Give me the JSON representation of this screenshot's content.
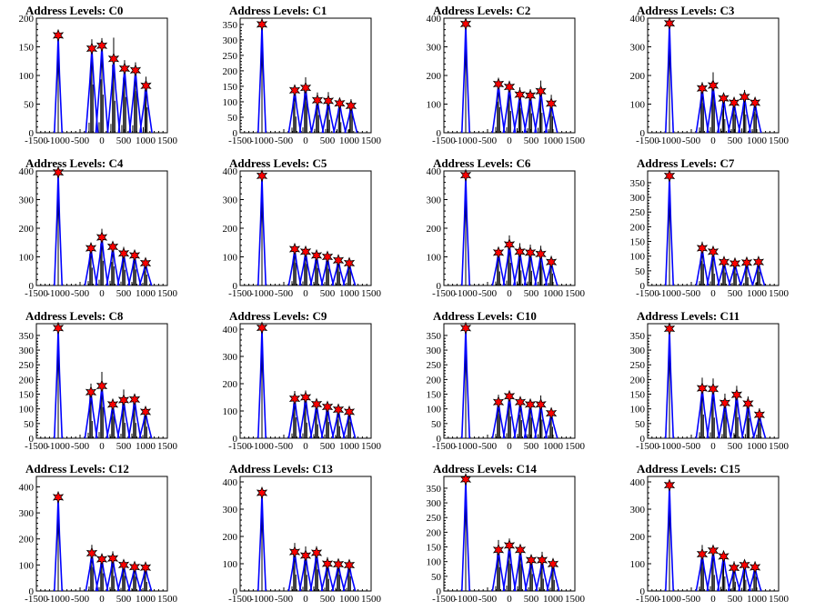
{
  "page": {
    "background": "#ffffff"
  },
  "style": {
    "frame_color": "#000000",
    "hist_color": "#000000",
    "fit_color": "#0000ff",
    "marker_color": "#ff0000"
  },
  "chart_data": [
    {
      "type": "bar",
      "title": "Address Levels: C0",
      "xlim": [
        -1500,
        1500
      ],
      "ylim": [
        0,
        200
      ],
      "yticks": [
        0,
        50,
        100,
        150,
        200
      ],
      "xticks": [
        -1500,
        -1000,
        -500,
        0,
        500,
        1000,
        1500
      ],
      "xtick_labels": [
        "-1500",
        "-1000",
        "-500",
        "0",
        "500",
        "1000",
        "1500"
      ],
      "peaks": [
        {
          "x": -1000,
          "y": 170
        },
        {
          "x": -230,
          "y": 147
        },
        {
          "x": 0,
          "y": 152
        },
        {
          "x": 270,
          "y": 129
        },
        {
          "x": 520,
          "y": 112
        },
        {
          "x": 770,
          "y": 109
        },
        {
          "x": 1010,
          "y": 82
        }
      ]
    },
    {
      "type": "bar",
      "title": "Address Levels: C1",
      "xlim": [
        -1500,
        1500
      ],
      "ylim": [
        0,
        370
      ],
      "yticks": [
        0,
        50,
        100,
        150,
        200,
        250,
        300,
        350
      ],
      "xticks": [
        -1500,
        -1000,
        -500,
        0,
        500,
        1000,
        1500
      ],
      "xtick_labels": [
        "-1500",
        "-1000",
        "-500",
        "0",
        "500",
        "1000",
        "1500"
      ],
      "peaks": [
        {
          "x": -1000,
          "y": 350
        },
        {
          "x": -250,
          "y": 137
        },
        {
          "x": 0,
          "y": 145
        },
        {
          "x": 270,
          "y": 105
        },
        {
          "x": 520,
          "y": 103
        },
        {
          "x": 780,
          "y": 95
        },
        {
          "x": 1040,
          "y": 87
        }
      ]
    },
    {
      "type": "bar",
      "title": "Address Levels: C2",
      "xlim": [
        -1500,
        1500
      ],
      "ylim": [
        0,
        400
      ],
      "yticks": [
        0,
        100,
        200,
        300,
        400
      ],
      "xticks": [
        -1500,
        -1000,
        -500,
        0,
        500,
        1000,
        1500
      ],
      "xtick_labels": [
        "-1500",
        "-1000",
        "-500",
        "0",
        "500",
        "1000",
        "1500"
      ],
      "peaks": [
        {
          "x": -1000,
          "y": 380
        },
        {
          "x": -250,
          "y": 170
        },
        {
          "x": 0,
          "y": 160
        },
        {
          "x": 240,
          "y": 133
        },
        {
          "x": 480,
          "y": 130
        },
        {
          "x": 720,
          "y": 145
        },
        {
          "x": 960,
          "y": 102
        }
      ]
    },
    {
      "type": "bar",
      "title": "Address Levels: C3",
      "xlim": [
        -1500,
        1500
      ],
      "ylim": [
        0,
        400
      ],
      "yticks": [
        0,
        100,
        200,
        300,
        400
      ],
      "xticks": [
        -1500,
        -1000,
        -500,
        0,
        500,
        1000,
        1500
      ],
      "xtick_labels": [
        "-1500",
        "-1000",
        "-500",
        "0",
        "500",
        "1000",
        "1500"
      ],
      "peaks": [
        {
          "x": -1000,
          "y": 382
        },
        {
          "x": -250,
          "y": 155
        },
        {
          "x": 0,
          "y": 165
        },
        {
          "x": 240,
          "y": 120
        },
        {
          "x": 480,
          "y": 105
        },
        {
          "x": 720,
          "y": 125
        },
        {
          "x": 960,
          "y": 105
        }
      ]
    },
    {
      "type": "bar",
      "title": "Address Levels: C4",
      "xlim": [
        -1500,
        1500
      ],
      "ylim": [
        0,
        400
      ],
      "yticks": [
        0,
        100,
        200,
        300,
        400
      ],
      "xticks": [
        -1500,
        -1000,
        -500,
        0,
        500,
        1000,
        1500
      ],
      "xtick_labels": [
        "-1500",
        "-1000",
        "-500",
        "0",
        "500",
        "1000",
        "1500"
      ],
      "peaks": [
        {
          "x": -1000,
          "y": 395
        },
        {
          "x": -250,
          "y": 130
        },
        {
          "x": 0,
          "y": 168
        },
        {
          "x": 250,
          "y": 135
        },
        {
          "x": 500,
          "y": 112
        },
        {
          "x": 750,
          "y": 105
        },
        {
          "x": 1000,
          "y": 78
        }
      ]
    },
    {
      "type": "bar",
      "title": "Address Levels: C5",
      "xlim": [
        -1500,
        1500
      ],
      "ylim": [
        0,
        400
      ],
      "yticks": [
        0,
        100,
        200,
        300,
        400
      ],
      "xticks": [
        -1500,
        -1000,
        -500,
        0,
        500,
        1000,
        1500
      ],
      "xtick_labels": [
        "-1500",
        "-1000",
        "-500",
        "0",
        "500",
        "1000",
        "1500"
      ],
      "peaks": [
        {
          "x": -1000,
          "y": 383
        },
        {
          "x": -250,
          "y": 127
        },
        {
          "x": 0,
          "y": 118
        },
        {
          "x": 250,
          "y": 105
        },
        {
          "x": 500,
          "y": 100
        },
        {
          "x": 750,
          "y": 88
        },
        {
          "x": 1000,
          "y": 78
        }
      ]
    },
    {
      "type": "bar",
      "title": "Address Levels: C6",
      "xlim": [
        -1500,
        1500
      ],
      "ylim": [
        0,
        400
      ],
      "yticks": [
        0,
        100,
        200,
        300,
        400
      ],
      "xticks": [
        -1500,
        -1000,
        -500,
        0,
        500,
        1000,
        1500
      ],
      "xtick_labels": [
        "-1500",
        "-1000",
        "-500",
        "0",
        "500",
        "1000",
        "1500"
      ],
      "peaks": [
        {
          "x": -1000,
          "y": 385
        },
        {
          "x": -250,
          "y": 115
        },
        {
          "x": 0,
          "y": 143
        },
        {
          "x": 240,
          "y": 118
        },
        {
          "x": 480,
          "y": 115
        },
        {
          "x": 720,
          "y": 110
        },
        {
          "x": 960,
          "y": 82
        }
      ]
    },
    {
      "type": "bar",
      "title": "Address Levels: C7",
      "xlim": [
        -1500,
        1500
      ],
      "ylim": [
        0,
        390
      ],
      "yticks": [
        0,
        50,
        100,
        150,
        200,
        250,
        300,
        350
      ],
      "xticks": [
        -1500,
        -1000,
        -500,
        0,
        500,
        1000,
        1500
      ],
      "xtick_labels": [
        "-1500",
        "-1000",
        "-500",
        "0",
        "500",
        "1000",
        "1500"
      ],
      "peaks": [
        {
          "x": -1000,
          "y": 373
        },
        {
          "x": -250,
          "y": 127
        },
        {
          "x": 0,
          "y": 115
        },
        {
          "x": 250,
          "y": 80
        },
        {
          "x": 500,
          "y": 75
        },
        {
          "x": 770,
          "y": 78
        },
        {
          "x": 1040,
          "y": 80
        }
      ]
    },
    {
      "type": "bar",
      "title": "Address Levels: C8",
      "xlim": [
        -1500,
        1500
      ],
      "ylim": [
        0,
        390
      ],
      "yticks": [
        0,
        50,
        100,
        150,
        200,
        250,
        300,
        350
      ],
      "xticks": [
        -1500,
        -1000,
        -500,
        0,
        500,
        1000,
        1500
      ],
      "xtick_labels": [
        "-1500",
        "-1000",
        "-500",
        "0",
        "500",
        "1000",
        "1500"
      ],
      "peaks": [
        {
          "x": -1000,
          "y": 375
        },
        {
          "x": -250,
          "y": 157
        },
        {
          "x": 0,
          "y": 178
        },
        {
          "x": 250,
          "y": 115
        },
        {
          "x": 500,
          "y": 130
        },
        {
          "x": 750,
          "y": 132
        },
        {
          "x": 1000,
          "y": 90
        }
      ]
    },
    {
      "type": "bar",
      "title": "Address Levels: C9",
      "xlim": [
        -1500,
        1500
      ],
      "ylim": [
        0,
        420
      ],
      "yticks": [
        0,
        100,
        200,
        300,
        400
      ],
      "xticks": [
        -1500,
        -1000,
        -500,
        0,
        500,
        1000,
        1500
      ],
      "xtick_labels": [
        "-1500",
        "-1000",
        "-500",
        "0",
        "500",
        "1000",
        "1500"
      ],
      "peaks": [
        {
          "x": -1000,
          "y": 405
        },
        {
          "x": -250,
          "y": 145
        },
        {
          "x": 0,
          "y": 150
        },
        {
          "x": 250,
          "y": 125
        },
        {
          "x": 500,
          "y": 115
        },
        {
          "x": 750,
          "y": 105
        },
        {
          "x": 1000,
          "y": 97
        }
      ]
    },
    {
      "type": "bar",
      "title": "Address Levels: C10",
      "xlim": [
        -1500,
        1500
      ],
      "ylim": [
        0,
        390
      ],
      "yticks": [
        0,
        50,
        100,
        150,
        200,
        250,
        300,
        350
      ],
      "xticks": [
        -1500,
        -1000,
        -500,
        0,
        500,
        1000,
        1500
      ],
      "xtick_labels": [
        "-1500",
        "-1000",
        "-500",
        "0",
        "500",
        "1000",
        "1500"
      ],
      "peaks": [
        {
          "x": -1000,
          "y": 375
        },
        {
          "x": -250,
          "y": 123
        },
        {
          "x": 0,
          "y": 143
        },
        {
          "x": 250,
          "y": 123
        },
        {
          "x": 480,
          "y": 115
        },
        {
          "x": 720,
          "y": 115
        },
        {
          "x": 960,
          "y": 85
        }
      ]
    },
    {
      "type": "bar",
      "title": "Address Levels: C11",
      "xlim": [
        -1500,
        1500
      ],
      "ylim": [
        0,
        390
      ],
      "yticks": [
        0,
        50,
        100,
        150,
        200,
        250,
        300,
        350
      ],
      "xticks": [
        -1500,
        -1000,
        -500,
        0,
        500,
        1000,
        1500
      ],
      "xtick_labels": [
        "-1500",
        "-1000",
        "-500",
        "0",
        "500",
        "1000",
        "1500"
      ],
      "peaks": [
        {
          "x": -1000,
          "y": 373
        },
        {
          "x": -250,
          "y": 170
        },
        {
          "x": 0,
          "y": 168
        },
        {
          "x": 270,
          "y": 120
        },
        {
          "x": 540,
          "y": 148
        },
        {
          "x": 800,
          "y": 118
        },
        {
          "x": 1060,
          "y": 80
        }
      ]
    },
    {
      "type": "bar",
      "title": "Address Levels: C12",
      "xlim": [
        -1500,
        1500
      ],
      "ylim": [
        0,
        440
      ],
      "yticks": [
        0,
        100,
        200,
        300,
        400
      ],
      "xticks": [
        -1500,
        -1000,
        -500,
        0,
        500,
        1000,
        1500
      ],
      "xtick_labels": [
        "-1500",
        "-1000",
        "-500",
        "0",
        "500",
        "1000",
        "1500"
      ],
      "peaks": [
        {
          "x": -1000,
          "y": 360
        },
        {
          "x": -230,
          "y": 145
        },
        {
          "x": 0,
          "y": 122
        },
        {
          "x": 250,
          "y": 125
        },
        {
          "x": 500,
          "y": 100
        },
        {
          "x": 750,
          "y": 92
        },
        {
          "x": 1000,
          "y": 90
        }
      ]
    },
    {
      "type": "bar",
      "title": "Address Levels: C13",
      "xlim": [
        -1500,
        1500
      ],
      "ylim": [
        0,
        420
      ],
      "yticks": [
        0,
        100,
        200,
        300,
        400
      ],
      "xticks": [
        -1500,
        -1000,
        -500,
        0,
        500,
        1000,
        1500
      ],
      "xtick_labels": [
        "-1500",
        "-1000",
        "-500",
        "0",
        "500",
        "1000",
        "1500"
      ],
      "peaks": [
        {
          "x": -1000,
          "y": 360
        },
        {
          "x": -250,
          "y": 143
        },
        {
          "x": 0,
          "y": 130
        },
        {
          "x": 250,
          "y": 140
        },
        {
          "x": 500,
          "y": 100
        },
        {
          "x": 750,
          "y": 98
        },
        {
          "x": 1000,
          "y": 95
        }
      ]
    },
    {
      "type": "bar",
      "title": "Address Levels: C14",
      "xlim": [
        -1500,
        1500
      ],
      "ylim": [
        0,
        390
      ],
      "yticks": [
        0,
        50,
        100,
        150,
        200,
        250,
        300,
        350
      ],
      "xticks": [
        -1500,
        -1000,
        -500,
        0,
        500,
        1000,
        1500
      ],
      "xtick_labels": [
        "-1500",
        "-1000",
        "-500",
        "0",
        "500",
        "1000",
        "1500"
      ],
      "peaks": [
        {
          "x": -1000,
          "y": 380
        },
        {
          "x": -250,
          "y": 140
        },
        {
          "x": 0,
          "y": 155
        },
        {
          "x": 250,
          "y": 140
        },
        {
          "x": 500,
          "y": 105
        },
        {
          "x": 750,
          "y": 105
        },
        {
          "x": 1000,
          "y": 92
        }
      ]
    },
    {
      "type": "bar",
      "title": "Address Levels: C15",
      "xlim": [
        -1500,
        1500
      ],
      "ylim": [
        0,
        420
      ],
      "yticks": [
        0,
        100,
        200,
        300,
        400
      ],
      "xticks": [
        -1500,
        -1000,
        -500,
        0,
        500,
        1000,
        1500
      ],
      "xtick_labels": [
        "-1500",
        "-1000",
        "-500",
        "0",
        "500",
        "1000",
        "1500"
      ],
      "peaks": [
        {
          "x": -1000,
          "y": 388
        },
        {
          "x": -250,
          "y": 135
        },
        {
          "x": 0,
          "y": 148
        },
        {
          "x": 240,
          "y": 127
        },
        {
          "x": 480,
          "y": 85
        },
        {
          "x": 720,
          "y": 95
        },
        {
          "x": 960,
          "y": 87
        }
      ]
    }
  ]
}
